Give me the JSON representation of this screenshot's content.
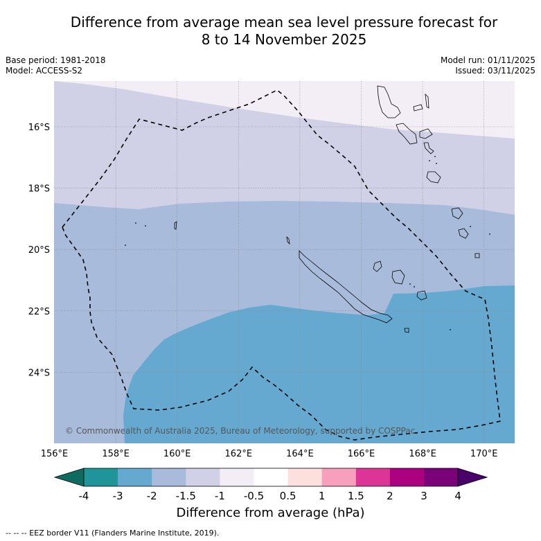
{
  "title": {
    "line1": "Difference from average mean sea level pressure forecast for",
    "line2": "8 to 14 November 2025"
  },
  "meta": {
    "base_period": "Base period: 1981-2018",
    "model": "Model: ACCESS-S2",
    "model_run": "Model run: 01/11/2025",
    "issued": "Issued: 03/11/2025"
  },
  "map": {
    "x_ticks": [
      "156°E",
      "158°E",
      "160°E",
      "162°E",
      "164°E",
      "166°E",
      "168°E",
      "170°E"
    ],
    "y_ticks": [
      "16°S",
      "18°S",
      "20°S",
      "22°S",
      "24°S"
    ],
    "copyright": "© Commonwealth of Australia 2025, Bureau of Meteorology, supported by COSPPac",
    "colors": {
      "band_neg_3": "#66a9d0",
      "band_neg_2": "#a9bbdb",
      "band_neg_1_5": "#d0d1e6",
      "band_neg_1": "#f3eef6",
      "eez": "#000000"
    }
  },
  "colorbar": {
    "title": "Difference from average (hPa)",
    "labels": [
      "-4",
      "-3",
      "-2",
      "-1.5",
      "-1",
      "-0.5",
      "0.5",
      "1",
      "1.5",
      "2",
      "3",
      "4"
    ],
    "colors": [
      "#1f9499",
      "#66a9d0",
      "#a9bbdb",
      "#d0d1e6",
      "#f3eef6",
      "#ffffff",
      "#fde0dd",
      "#f99fbe",
      "#dc3597",
      "#ab0181",
      "#7a0177"
    ],
    "under_color": "#0e6b60",
    "over_color": "#49006a"
  },
  "footer": "-- -- -- EEZ border V11 (Flanders Marine Institute, 2019)."
}
